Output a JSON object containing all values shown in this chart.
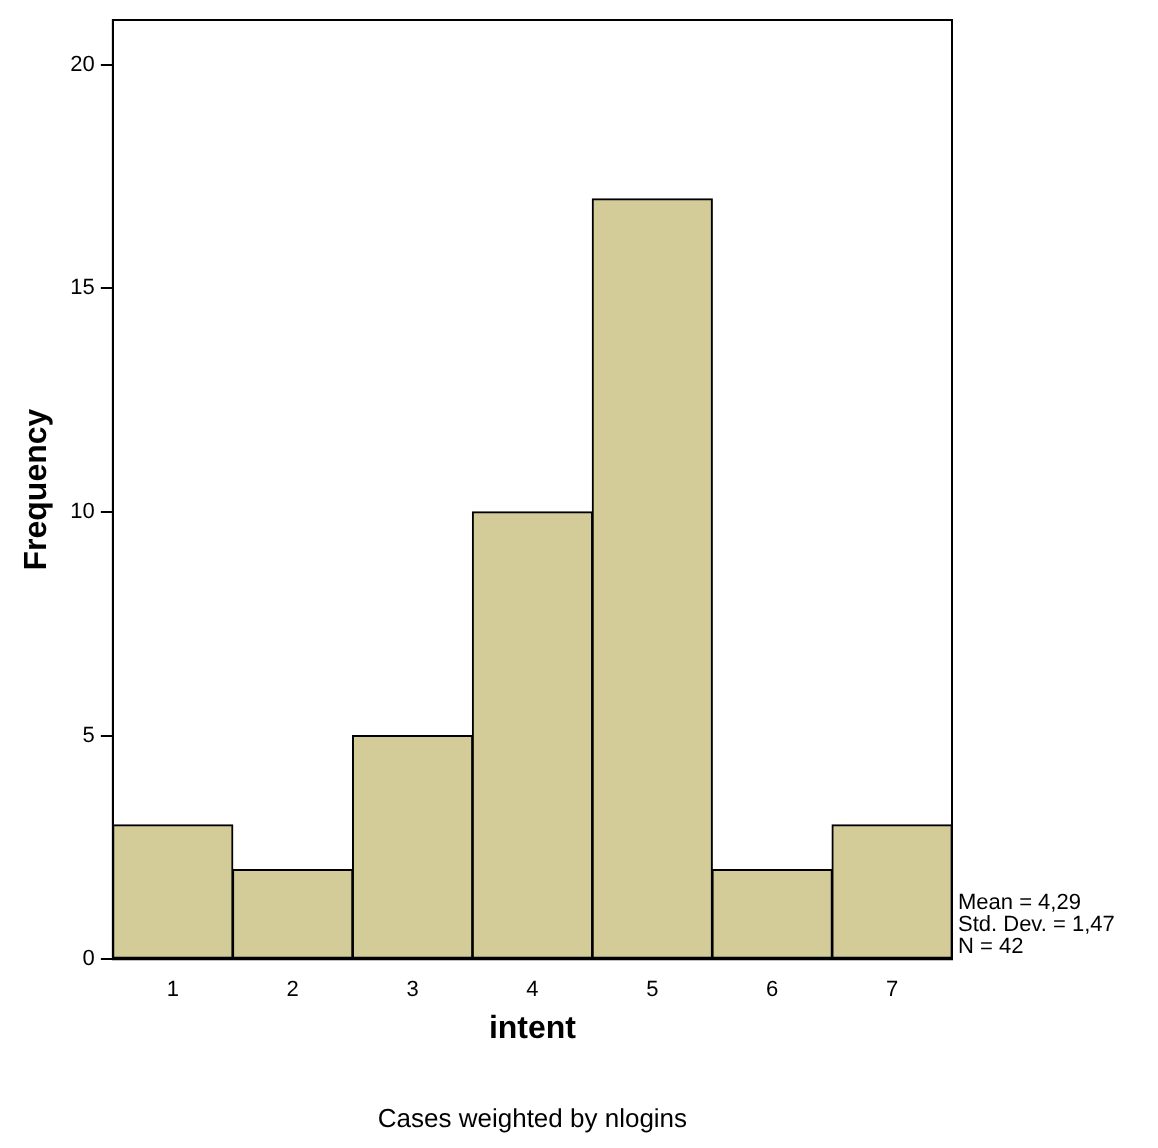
{
  "chart_data": {
    "type": "histogram",
    "xlabel": "intent",
    "ylabel": "Frequency",
    "bins": [
      0.5,
      1.5,
      2.5,
      3.5,
      4.5,
      5.5,
      6.5,
      7.5
    ],
    "values": [
      3,
      2,
      5,
      10,
      17,
      2,
      3
    ],
    "color": "#d3cc99",
    "xlim": [
      0.5,
      7.5
    ],
    "xticks": [
      1,
      2,
      3,
      4,
      5,
      6,
      7
    ],
    "ylim": [
      0,
      21
    ],
    "yticks": [
      0,
      5,
      10,
      15,
      20
    ],
    "grid": false,
    "legend": false,
    "annotations": [
      "Mean = 4,29",
      "Std. Dev. = 1,47",
      "N = 42",
      "Cases weighted by nlogins"
    ]
  }
}
